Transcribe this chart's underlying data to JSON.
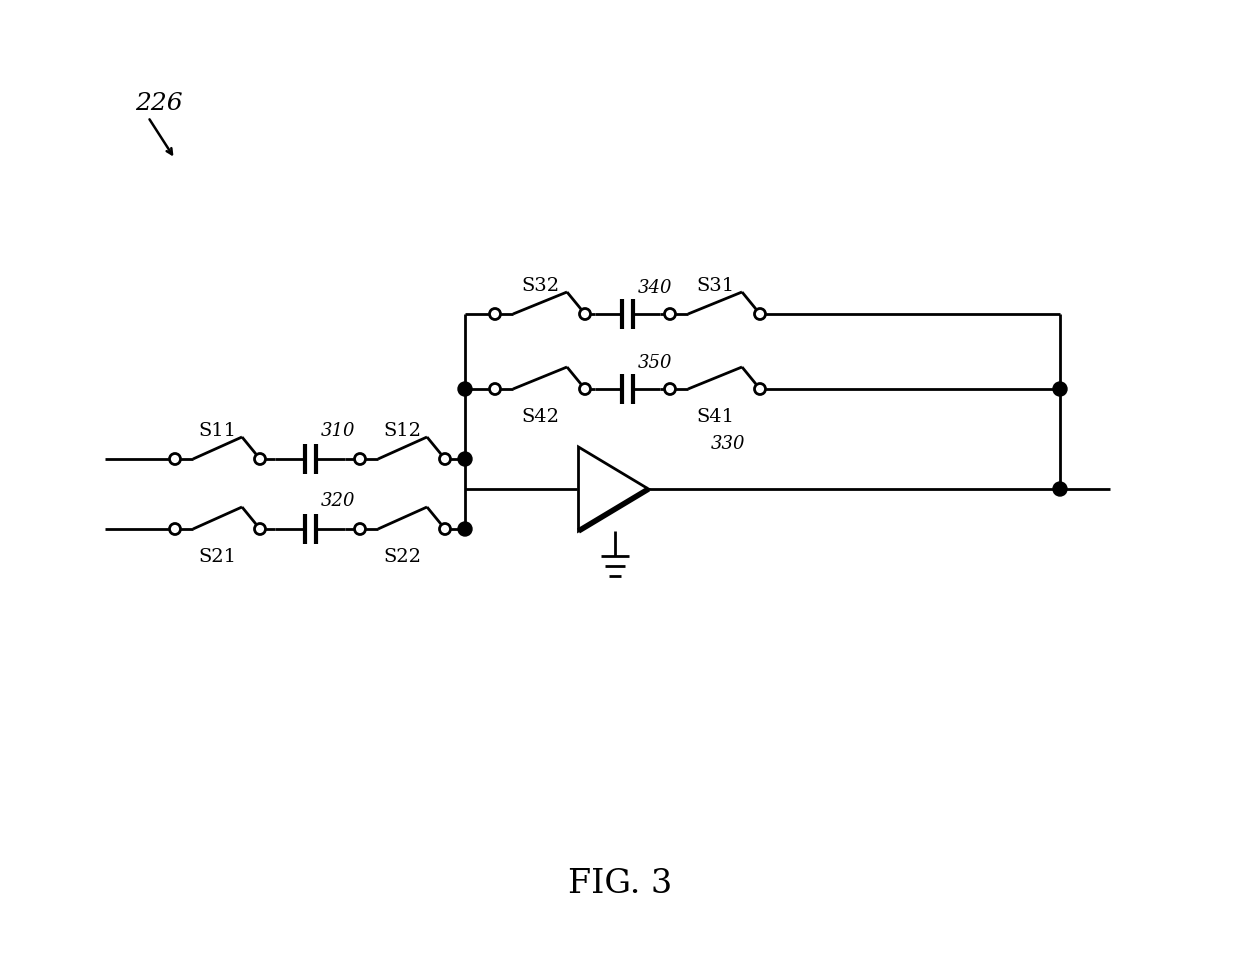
{
  "bg_color": "#ffffff",
  "line_color": "#000000",
  "lw": 2.0,
  "fig_title": "FIG. 3",
  "label_226": "226",
  "label_310": "310",
  "label_320": "320",
  "label_330": "330",
  "label_340": "340",
  "label_350": "350",
  "label_S11": "S11",
  "label_S12": "S12",
  "label_S21": "S21",
  "label_S22": "S22",
  "label_S31": "S31",
  "label_S32": "S32",
  "label_S41": "S41",
  "label_S42": "S42"
}
